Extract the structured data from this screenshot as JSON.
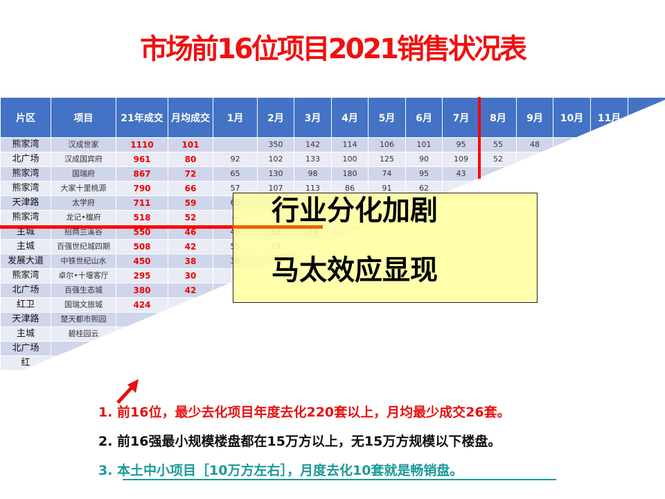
{
  "title": "市场前16位项目2021销售状况表",
  "table": {
    "headers": [
      "片区",
      "项目",
      "21年成交",
      "月均成交",
      "1月",
      "2月",
      "3月",
      "4月",
      "5月",
      "6月",
      "7月",
      "8月",
      "9月",
      "10月",
      "11月",
      ""
    ],
    "rows": [
      {
        "area": "熊家湾",
        "project": "汉成世家",
        "total": "1110",
        "avg": "101",
        "months": [
          "",
          "350",
          "142",
          "114",
          "106",
          "101",
          "95",
          "55",
          "48"
        ]
      },
      {
        "area": "北广场",
        "project": "汉成国宾府",
        "total": "961",
        "avg": "80",
        "months": [
          "92",
          "102",
          "133",
          "100",
          "125",
          "90",
          "109",
          "52"
        ]
      },
      {
        "area": "熊家湾",
        "project": "国瑞府",
        "total": "867",
        "avg": "72",
        "months": [
          "65",
          "130",
          "98",
          "180",
          "74",
          "95",
          "43"
        ]
      },
      {
        "area": "熊家湾",
        "project": "大家十里桃源",
        "total": "790",
        "avg": "66",
        "months": [
          "57",
          "107",
          "113",
          "86",
          "91",
          "62"
        ]
      },
      {
        "area": "天津路",
        "project": "太学府",
        "total": "711",
        "avg": "59",
        "months": [
          "60"
        ]
      },
      {
        "area": "熊家湾",
        "project": "龙记•檀府",
        "total": "518",
        "avg": "52",
        "months": [
          "—"
        ]
      },
      {
        "area": "主城",
        "project": "招商兰溪谷",
        "total": "550",
        "avg": "46",
        "months": [
          "40",
          "53",
          "74"
        ]
      },
      {
        "area": "主城",
        "project": "百强世纪城四期",
        "total": "508",
        "avg": "42",
        "months": [
          "55",
          "29"
        ]
      },
      {
        "area": "发展大道",
        "project": "中铁世纪山水",
        "total": "450",
        "avg": "38",
        "months": [
          "36"
        ]
      },
      {
        "area": "熊家湾",
        "project": "卓尔•十堰客厅",
        "total": "295",
        "avg": "30",
        "months": []
      },
      {
        "area": "北广场",
        "project": "百强生态城",
        "total": "380",
        "avg": "42",
        "months": []
      },
      {
        "area": "红卫",
        "project": "国瑞文旅城",
        "total": "424",
        "avg": "",
        "months": []
      },
      {
        "area": "天津路",
        "project": "楚天都市熙园",
        "total": "",
        "avg": "",
        "months": []
      },
      {
        "area": "主城",
        "project": "碧桂园云",
        "total": "",
        "avg": "",
        "months": []
      },
      {
        "area": "北广场",
        "project": "",
        "total": "",
        "avg": "",
        "months": []
      },
      {
        "area": "红",
        "project": "",
        "total": "",
        "avg": "",
        "months": []
      }
    ]
  },
  "callout": {
    "line1": "行业分化加剧",
    "line2": "马太效应显现"
  },
  "points": [
    "1. 前16位，最少去化项目年度去化220套以上，月均最少成交26套。",
    "2. 前16强最小规模楼盘都在15万方以上，无15万方规模以下楼盘。",
    "3. 本土中小项目［10万方左右］，月度去化10套就是畅销盘。"
  ],
  "colors": {
    "title": "#f01010",
    "header": "#4472c4",
    "point1": "#e81010",
    "point3": "#1a9a98"
  }
}
